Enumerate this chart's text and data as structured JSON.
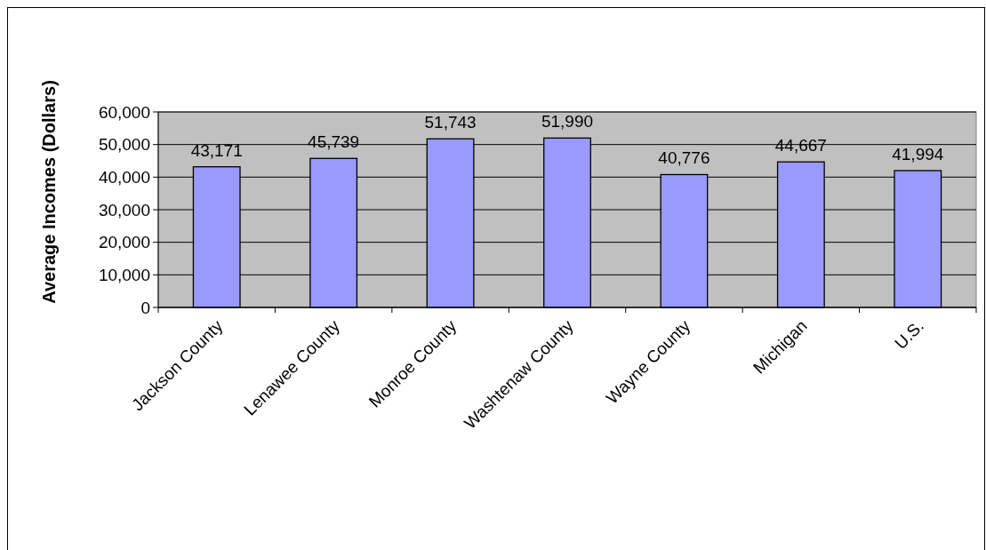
{
  "chart_data": {
    "type": "bar",
    "ylabel": "Average Incomes (Dollars)",
    "categories": [
      "Jackson County",
      "Lenawee County",
      "Monroe County",
      "Washtenaw County",
      "Wayne County",
      "Michigan",
      "U.S."
    ],
    "values": [
      43171,
      45739,
      51743,
      51990,
      40776,
      44667,
      41994
    ],
    "color": "#9999ff",
    "ylim": [
      0,
      60000
    ],
    "yticks": [
      0,
      {
        "value": 10000,
        "label": "10,000"
      },
      {
        "value": 20000,
        "label": "20,000"
      },
      {
        "value": 30000,
        "label": "30,000"
      },
      {
        "value": 40000,
        "label": "40,000"
      },
      {
        "value": 50000,
        "label": "50,000"
      },
      {
        "value": 60000,
        "label": "60,000"
      }
    ],
    "value_labels": [
      "43,171",
      "45,739",
      "51,743",
      "51,990",
      "40,776",
      "44,667",
      "41,994"
    ],
    "grid": "y"
  }
}
